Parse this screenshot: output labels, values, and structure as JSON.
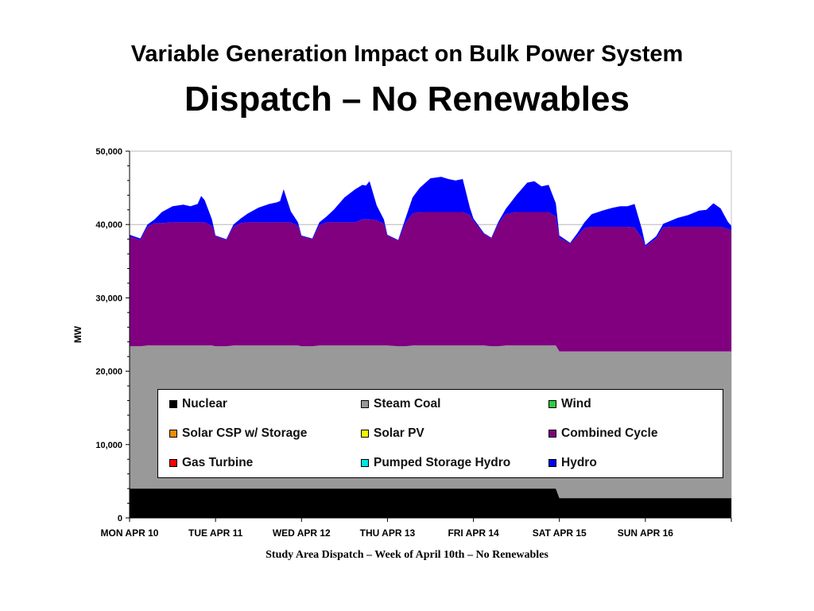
{
  "title": {
    "line1": "Variable Generation Impact on Bulk Power System",
    "line2": "Dispatch – No Renewables"
  },
  "caption": "Study Area Dispatch – Week of April 10th – No Renewables",
  "colors": {
    "Nuclear": "#000000",
    "Steam Coal": "#999999",
    "Wind": "#2ecc40",
    "Solar CSP w/ Storage": "#f08c00",
    "Solar PV": "#f5f500",
    "Combined Cycle": "#800080",
    "Gas Turbine": "#ff0000",
    "Pumped Storage Hydro": "#00e5e5",
    "Hydro": "#0000ff"
  },
  "chart_data": {
    "type": "area",
    "stacked": true,
    "title": "",
    "xlabel": "",
    "ylabel": "MW",
    "ylim": [
      0,
      50000
    ],
    "yticks": [
      0,
      10000,
      20000,
      30000,
      40000,
      50000
    ],
    "ytick_labels": [
      "0",
      "10,000",
      "20,000",
      "30,000",
      "40,000",
      "50,000"
    ],
    "xlim": [
      0,
      168
    ],
    "xticks": [
      0,
      24,
      48,
      72,
      96,
      120,
      144
    ],
    "xtick_labels": [
      "MON APR 10",
      "TUE APR 11",
      "WED APR 12",
      "THU APR 13",
      "FRI APR 14",
      "SAT APR 15",
      "SUN APR 16"
    ],
    "grid": "horizontal",
    "legend_position": "center-bottom",
    "legend": [
      "Nuclear",
      "Steam Coal",
      "Wind",
      "Solar CSP w/ Storage",
      "Solar PV",
      "Combined Cycle",
      "Gas Turbine",
      "Pumped Storage Hydro",
      "Hydro"
    ],
    "x": [
      0,
      3,
      5,
      7,
      9,
      12,
      15,
      17,
      19,
      20,
      21,
      23,
      24,
      27,
      29,
      31,
      33,
      36,
      39,
      41,
      42,
      43,
      45,
      47,
      48,
      51,
      53,
      55,
      57,
      60,
      63,
      65,
      66,
      67,
      69,
      71,
      72,
      75,
      77,
      79,
      81,
      84,
      87,
      89,
      91,
      93,
      95,
      96,
      99,
      101,
      103,
      105,
      108,
      111,
      113,
      115,
      117,
      119,
      120,
      123,
      125,
      127,
      129,
      132,
      135,
      137,
      139,
      141,
      143,
      144,
      147,
      149,
      151,
      153,
      156,
      159,
      161,
      163,
      165,
      167,
      168
    ],
    "series": [
      {
        "name": "Nuclear",
        "values": [
          4000,
          4000,
          4000,
          4000,
          4000,
          4000,
          4000,
          4000,
          4000,
          4000,
          4000,
          4000,
          4000,
          4000,
          4000,
          4000,
          4000,
          4000,
          4000,
          4000,
          4000,
          4000,
          4000,
          4000,
          4000,
          4000,
          4000,
          4000,
          4000,
          4000,
          4000,
          4000,
          4000,
          4000,
          4000,
          4000,
          4000,
          4000,
          4000,
          4000,
          4000,
          4000,
          4000,
          4000,
          4000,
          4000,
          4000,
          4000,
          4000,
          4000,
          4000,
          4000,
          4000,
          4000,
          4000,
          4000,
          4000,
          4000,
          2700,
          2700,
          2700,
          2700,
          2700,
          2700,
          2700,
          2700,
          2700,
          2700,
          2700,
          2700,
          2700,
          2700,
          2700,
          2700,
          2700,
          2700,
          2700,
          2700,
          2700,
          2700,
          2700
        ]
      },
      {
        "name": "Steam Coal",
        "values": [
          19400,
          19400,
          19500,
          19500,
          19500,
          19500,
          19500,
          19500,
          19500,
          19500,
          19500,
          19500,
          19400,
          19400,
          19500,
          19500,
          19500,
          19500,
          19500,
          19500,
          19500,
          19500,
          19500,
          19500,
          19400,
          19400,
          19500,
          19500,
          19500,
          19500,
          19500,
          19500,
          19500,
          19500,
          19500,
          19500,
          19500,
          19400,
          19400,
          19500,
          19500,
          19500,
          19500,
          19500,
          19500,
          19500,
          19500,
          19500,
          19500,
          19400,
          19400,
          19500,
          19500,
          19500,
          19500,
          19500,
          19500,
          19500,
          20000,
          20000,
          20000,
          20000,
          20000,
          20000,
          20000,
          20000,
          20000,
          20000,
          20000,
          20000,
          20000,
          20000,
          20000,
          20000,
          20000,
          20000,
          20000,
          20000,
          20000,
          20000,
          20000
        ]
      },
      {
        "name": "Combined Cycle",
        "values": [
          15000,
          14500,
          16200,
          16700,
          16700,
          16800,
          16800,
          16800,
          16800,
          16800,
          16800,
          16300,
          15000,
          14500,
          16200,
          16700,
          16800,
          16800,
          16800,
          16800,
          16800,
          16800,
          16800,
          16300,
          15000,
          14600,
          16400,
          16800,
          16800,
          16800,
          16800,
          17200,
          17200,
          17200,
          17100,
          16600,
          15000,
          14400,
          16800,
          18000,
          18200,
          18200,
          18200,
          18200,
          18200,
          18200,
          17800,
          17000,
          15200,
          14700,
          16700,
          17900,
          18200,
          18200,
          18200,
          18200,
          18200,
          17600,
          15500,
          14700,
          15700,
          16800,
          17000,
          17000,
          17000,
          17000,
          17000,
          16900,
          15500,
          14300,
          15400,
          16900,
          17000,
          17000,
          17000,
          17000,
          17000,
          17000,
          17000,
          16700,
          16500
        ]
      },
      {
        "name": "Wind",
        "values": [
          0,
          0,
          0,
          0,
          0,
          0,
          0,
          0,
          0,
          0,
          0,
          0,
          0,
          0,
          0,
          0,
          0,
          0,
          0,
          0,
          0,
          0,
          0,
          0,
          0,
          0,
          0,
          0,
          0,
          0,
          0,
          0,
          0,
          0,
          0,
          0,
          0,
          0,
          0,
          0,
          0,
          0,
          0,
          0,
          0,
          0,
          0,
          0,
          0,
          0,
          0,
          0,
          0,
          0,
          0,
          0,
          0,
          0,
          0,
          0,
          0,
          0,
          0,
          0,
          0,
          0,
          0,
          0,
          0,
          0,
          0,
          0,
          0,
          0,
          0,
          0,
          0,
          0,
          0,
          0,
          0
        ]
      },
      {
        "name": "Solar CSP w/ Storage",
        "values": [
          0,
          0,
          0,
          0,
          0,
          0,
          0,
          0,
          0,
          0,
          0,
          0,
          0,
          0,
          0,
          0,
          0,
          0,
          0,
          0,
          0,
          0,
          0,
          0,
          0,
          0,
          0,
          0,
          0,
          0,
          0,
          0,
          0,
          0,
          0,
          0,
          0,
          0,
          0,
          0,
          0,
          0,
          0,
          0,
          0,
          0,
          0,
          0,
          0,
          0,
          0,
          0,
          0,
          0,
          0,
          0,
          0,
          0,
          0,
          0,
          0,
          0,
          0,
          0,
          0,
          0,
          0,
          0,
          0,
          0,
          0,
          0,
          0,
          0,
          0,
          0,
          0,
          0,
          0,
          0,
          0
        ]
      },
      {
        "name": "Solar PV",
        "values": [
          0,
          0,
          0,
          0,
          0,
          0,
          0,
          0,
          0,
          0,
          0,
          0,
          0,
          0,
          0,
          0,
          0,
          0,
          0,
          0,
          0,
          0,
          0,
          0,
          0,
          0,
          0,
          0,
          0,
          0,
          0,
          0,
          0,
          0,
          0,
          0,
          0,
          0,
          0,
          0,
          0,
          0,
          0,
          0,
          0,
          0,
          0,
          0,
          0,
          0,
          0,
          0,
          0,
          0,
          0,
          0,
          0,
          0,
          0,
          0,
          0,
          0,
          0,
          0,
          0,
          0,
          0,
          0,
          0,
          0,
          0,
          0,
          0,
          0,
          0,
          0,
          0,
          0,
          0,
          0,
          0
        ]
      },
      {
        "name": "Gas Turbine",
        "values": [
          0,
          0,
          0,
          0,
          0,
          0,
          0,
          0,
          0,
          0,
          0,
          0,
          0,
          0,
          0,
          0,
          0,
          0,
          0,
          0,
          0,
          0,
          0,
          0,
          0,
          0,
          0,
          0,
          0,
          0,
          0,
          0,
          0,
          0,
          0,
          0,
          0,
          0,
          0,
          0,
          0,
          0,
          0,
          0,
          0,
          0,
          0,
          0,
          0,
          0,
          0,
          0,
          0,
          0,
          0,
          0,
          0,
          0,
          0,
          0,
          0,
          0,
          0,
          0,
          0,
          0,
          0,
          0,
          0,
          0,
          0,
          0,
          0,
          0,
          0,
          0,
          0,
          0,
          0,
          0,
          0
        ]
      },
      {
        "name": "Pumped Storage Hydro",
        "values": [
          0,
          0,
          0,
          0,
          0,
          0,
          0,
          0,
          0,
          0,
          0,
          0,
          0,
          0,
          0,
          0,
          0,
          0,
          0,
          0,
          0,
          0,
          0,
          0,
          0,
          0,
          0,
          0,
          0,
          0,
          0,
          0,
          0,
          0,
          0,
          0,
          0,
          0,
          0,
          0,
          0,
          0,
          0,
          0,
          0,
          0,
          0,
          0,
          0,
          0,
          0,
          0,
          0,
          0,
          0,
          0,
          0,
          0,
          0,
          0,
          0,
          0,
          0,
          0,
          0,
          0,
          0,
          0,
          0,
          0,
          0,
          0,
          0,
          0,
          0,
          0,
          0,
          0,
          0,
          0,
          0
        ]
      },
      {
        "name": "Hydro",
        "values": [
          200,
          200,
          300,
          500,
          1500,
          2200,
          2400,
          2200,
          2500,
          3600,
          3000,
          900,
          100,
          100,
          300,
          600,
          1200,
          2000,
          2500,
          2700,
          2900,
          4500,
          1500,
          500,
          100,
          100,
          400,
          800,
          1700,
          3400,
          4500,
          4700,
          4600,
          5200,
          2000,
          600,
          100,
          100,
          600,
          2200,
          3300,
          4600,
          4800,
          4500,
          4300,
          4500,
          1000,
          300,
          100,
          100,
          300,
          700,
          2300,
          4000,
          4200,
          3500,
          3700,
          1800,
          300,
          100,
          400,
          800,
          1700,
          2200,
          2600,
          2800,
          2800,
          3200,
          1200,
          200,
          300,
          500,
          800,
          1200,
          1600,
          2200,
          2300,
          3200,
          2500,
          1000,
          600
        ]
      }
    ]
  }
}
